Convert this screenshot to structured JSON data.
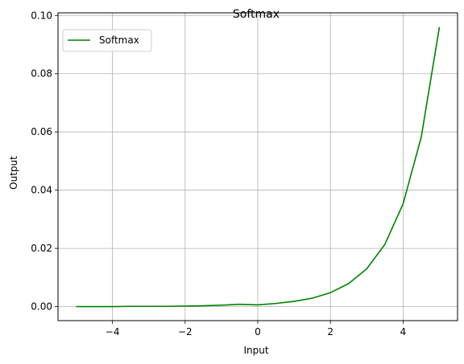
{
  "chart_data": {
    "type": "line",
    "title": "Softmax",
    "xlabel": "Input",
    "ylabel": "Output",
    "xlim": [
      -5.5,
      5.5
    ],
    "ylim": [
      -0.0048,
      0.1009
    ],
    "xticks": [
      -4,
      -2,
      0,
      2,
      4
    ],
    "xtick_labels": [
      "−4",
      "−2",
      "0",
      "2",
      "4"
    ],
    "yticks": [
      0.0,
      0.02,
      0.04,
      0.06,
      0.08,
      0.1
    ],
    "ytick_labels": [
      "0.00",
      "0.02",
      "0.04",
      "0.06",
      "0.08",
      "0.10"
    ],
    "grid": true,
    "legend_position": "upper left",
    "series": [
      {
        "name": "Softmax",
        "color": "#008000",
        "x": [
          -5.0,
          -4.5,
          -4.0,
          -3.5,
          -3.0,
          -2.5,
          -2.0,
          -1.5,
          -1.0,
          -0.5,
          0.0,
          0.5,
          1.0,
          1.5,
          2.0,
          2.5,
          3.0,
          3.5,
          4.0,
          4.5,
          5.0
        ],
        "y": [
          0.0,
          0.0,
          0.0,
          0.0001,
          0.0001,
          0.0001,
          0.0002,
          0.0003,
          0.0005,
          0.0008,
          0.0006,
          0.0011,
          0.0018,
          0.0029,
          0.0048,
          0.0079,
          0.013,
          0.0214,
          0.0353,
          0.0582,
          0.096
        ]
      }
    ]
  }
}
